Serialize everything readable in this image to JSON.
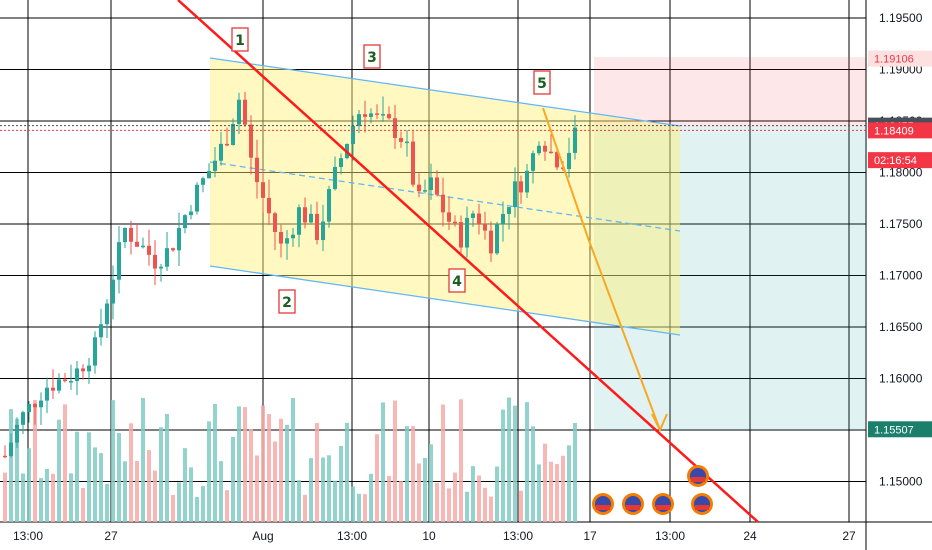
{
  "chart_data": {
    "type": "candlestick",
    "y_ticks": [
      "1.19500",
      "1.19000",
      "1.18500",
      "1.18000",
      "1.17500",
      "1.17000",
      "1.16500",
      "1.16000",
      "1.15500",
      "1.15000"
    ],
    "y_tick_values": [
      1.195,
      1.19,
      1.185,
      1.18,
      1.175,
      1.17,
      1.165,
      1.16,
      1.155,
      1.15
    ],
    "ylim": [
      1.1462,
      1.1968
    ],
    "x_ticks": [
      "13:00",
      "27",
      "Aug",
      "13:00",
      "10",
      "13:00",
      "17",
      "13:00",
      "24",
      "27"
    ],
    "grid": true,
    "price_tags": [
      {
        "label": "1.19106",
        "value": 1.19106,
        "color": "#f23645",
        "style": "light"
      },
      {
        "label": "1.18455",
        "value": 1.18455,
        "color": "#4a4f5c",
        "style": "solid"
      },
      {
        "label": "1.18409",
        "value": 1.18409,
        "color": "#f23645",
        "style": "solid"
      },
      {
        "label": "02:16:54",
        "value": 1.1812,
        "color": "#f23645",
        "style": "solid"
      },
      {
        "label": "1.15507",
        "value": 1.15507,
        "color": "#1b7f6b",
        "style": "solid"
      }
    ],
    "wave_labels": [
      "1",
      "2",
      "3",
      "4",
      "5"
    ],
    "current_price": 1.18409,
    "colors": {
      "up": "#26a69a",
      "down": "#ef5350",
      "trendline": "#ff1a1a",
      "channel": "#64b5f6",
      "arrow": "#f9a825"
    }
  }
}
